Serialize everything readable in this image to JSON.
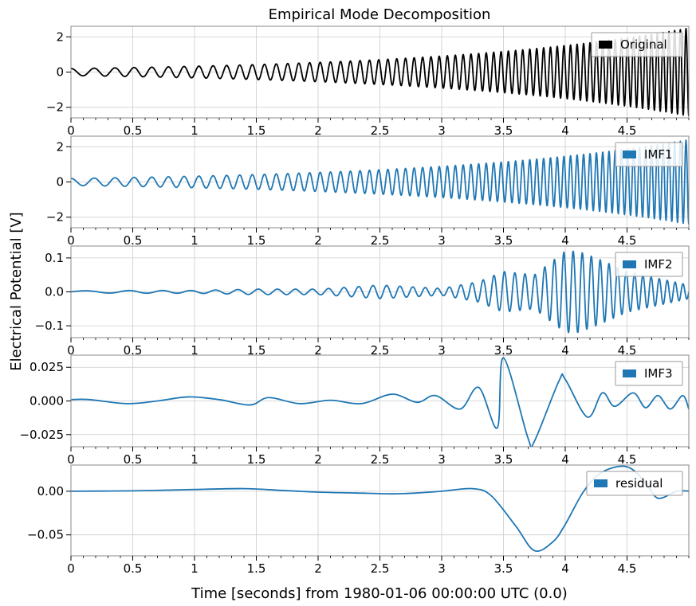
{
  "figure": {
    "title": "Empirical Mode Decomposition",
    "ylabel": "Electrical Potential [V]",
    "xlabel": "Time [seconds] from 1980-01-06 00:00:00 UTC (0.0)"
  },
  "chart_data": [
    {
      "type": "line",
      "title": "Empirical Mode Decomposition",
      "series": [
        {
          "name": "Original",
          "color": "#000000"
        }
      ],
      "legend": "upper-right",
      "xlim": [
        0,
        5
      ],
      "ylim": [
        -2.6,
        2.6
      ],
      "xticks": [
        0,
        0.5,
        1,
        1.5,
        2,
        2.5,
        3,
        3.5,
        4,
        4.5
      ],
      "xtick_labels": [
        "0",
        "0.5",
        "1",
        "1.5",
        "2",
        "2.5",
        "3",
        "3.5",
        "4",
        "4.5"
      ],
      "yticks": [
        -2,
        0,
        2
      ],
      "ytick_labels": [
        "−2",
        "0",
        "2"
      ],
      "signal": {
        "kind": "chirp",
        "amp_start": 0.2,
        "amp_end": 2.5,
        "freq_start": 5,
        "freq_end": 22
      },
      "grid": true
    },
    {
      "type": "line",
      "series": [
        {
          "name": "IMF1",
          "color": "#1f77b4"
        }
      ],
      "legend": "upper-right",
      "xlim": [
        0,
        5
      ],
      "ylim": [
        -2.6,
        2.6
      ],
      "xticks": [
        0,
        0.5,
        1,
        1.5,
        2,
        2.5,
        3,
        3.5,
        4,
        4.5
      ],
      "xtick_labels": [
        "0",
        "0.5",
        "1",
        "1.5",
        "2",
        "2.5",
        "3",
        "3.5",
        "4",
        "4.5"
      ],
      "yticks": [
        -2,
        0,
        2
      ],
      "ytick_labels": [
        "−2",
        "0",
        "2"
      ],
      "signal": {
        "kind": "chirp",
        "amp_start": 0.2,
        "amp_end": 2.4,
        "freq_start": 5,
        "freq_end": 22
      },
      "grid": true
    },
    {
      "type": "line",
      "series": [
        {
          "name": "IMF2",
          "color": "#1f77b4"
        }
      ],
      "legend": "upper-right",
      "xlim": [
        0,
        5
      ],
      "ylim": [
        -0.135,
        0.135
      ],
      "xticks": [
        0,
        0.5,
        1,
        1.5,
        2,
        2.5,
        3,
        3.5,
        4,
        4.5
      ],
      "xtick_labels": [
        "0",
        "0.5",
        "1",
        "1.5",
        "2",
        "2.5",
        "3",
        "3.5",
        "4",
        "4.5"
      ],
      "yticks": [
        -0.1,
        0,
        0.1
      ],
      "ytick_labels": [
        "−0.1",
        "0.0",
        "0.1"
      ],
      "signal": {
        "kind": "bursts",
        "envelope": [
          [
            0,
            0.003
          ],
          [
            0.5,
            0.004
          ],
          [
            1,
            0.004
          ],
          [
            1.5,
            0.008
          ],
          [
            2,
            0.008
          ],
          [
            2.3,
            0.015
          ],
          [
            2.5,
            0.02
          ],
          [
            3,
            0.01
          ],
          [
            3.3,
            0.03
          ],
          [
            3.5,
            0.06
          ],
          [
            3.75,
            0.05
          ],
          [
            4,
            0.12
          ],
          [
            4.1,
            0.12
          ],
          [
            4.25,
            0.1
          ],
          [
            4.5,
            0.06
          ],
          [
            5,
            0.02
          ]
        ],
        "freq_start": 2,
        "freq_end": 16
      },
      "grid": true
    },
    {
      "type": "line",
      "series": [
        {
          "name": "IMF3",
          "color": "#1f77b4"
        }
      ],
      "legend": "upper-right",
      "xlim": [
        0,
        5
      ],
      "ylim": [
        -0.034,
        0.034
      ],
      "xticks": [
        0,
        0.5,
        1,
        1.5,
        2,
        2.5,
        3,
        3.5,
        4,
        4.5
      ],
      "xtick_labels": [
        "0",
        "0.5",
        "1",
        "1.5",
        "2",
        "2.5",
        "3",
        "3.5",
        "4",
        "4.5"
      ],
      "yticks": [
        -0.025,
        0,
        0.025
      ],
      "ytick_labels": [
        "−0.025",
        "0.000",
        "0.025"
      ],
      "points": [
        [
          0,
          0.001
        ],
        [
          0.15,
          0.001
        ],
        [
          0.45,
          -0.002
        ],
        [
          0.7,
          0
        ],
        [
          0.95,
          0.003
        ],
        [
          1.2,
          0.001
        ],
        [
          1.45,
          -0.003
        ],
        [
          1.6,
          0.0025
        ],
        [
          1.85,
          -0.002
        ],
        [
          2.1,
          0.0005
        ],
        [
          2.35,
          -0.002
        ],
        [
          2.6,
          0.005
        ],
        [
          2.8,
          -0.001
        ],
        [
          2.95,
          0.004
        ],
        [
          3.15,
          -0.006
        ],
        [
          3.3,
          0.01
        ],
        [
          3.45,
          -0.02
        ],
        [
          3.5,
          0.032
        ],
        [
          3.7,
          -0.028
        ],
        [
          3.75,
          -0.03
        ],
        [
          3.95,
          0.015
        ],
        [
          4.0,
          0.016
        ],
        [
          4.18,
          -0.012
        ],
        [
          4.3,
          0.006
        ],
        [
          4.4,
          -0.004
        ],
        [
          4.55,
          0.006
        ],
        [
          4.65,
          -0.005
        ],
        [
          4.75,
          0.004
        ],
        [
          4.85,
          -0.006
        ],
        [
          4.95,
          0.004
        ],
        [
          5.0,
          -0.006
        ]
      ],
      "grid": true
    },
    {
      "type": "line",
      "series": [
        {
          "name": "residual",
          "color": "#1f77b4"
        }
      ],
      "legend": "upper-right",
      "xlim": [
        0,
        5
      ],
      "ylim": [
        -0.074,
        0.03
      ],
      "xticks": [
        0,
        0.5,
        1,
        1.5,
        2,
        2.5,
        3,
        3.5,
        4,
        4.5
      ],
      "xtick_labels": [
        "0",
        "0.5",
        "1",
        "1.5",
        "2",
        "2.5",
        "3",
        "3.5",
        "4",
        "4.5"
      ],
      "yticks": [
        -0.05,
        0
      ],
      "ytick_labels": [
        "−0.05",
        "0.00"
      ],
      "points": [
        [
          0,
          0.0
        ],
        [
          0.5,
          0.0005
        ],
        [
          1.0,
          0.002
        ],
        [
          1.4,
          0.003
        ],
        [
          1.7,
          0.001
        ],
        [
          2.0,
          -0.001
        ],
        [
          2.3,
          -0.002
        ],
        [
          2.6,
          -0.003
        ],
        [
          2.8,
          -0.002
        ],
        [
          3.0,
          0.0
        ],
        [
          3.25,
          0.003
        ],
        [
          3.4,
          -0.005
        ],
        [
          3.6,
          -0.04
        ],
        [
          3.75,
          -0.068
        ],
        [
          3.9,
          -0.058
        ],
        [
          4.0,
          -0.038
        ],
        [
          4.15,
          0.0
        ],
        [
          4.3,
          0.022
        ],
        [
          4.5,
          0.028
        ],
        [
          4.65,
          0.01
        ],
        [
          4.75,
          -0.008
        ],
        [
          4.9,
          0.0
        ],
        [
          5.0,
          0.0
        ]
      ],
      "grid": true
    }
  ]
}
